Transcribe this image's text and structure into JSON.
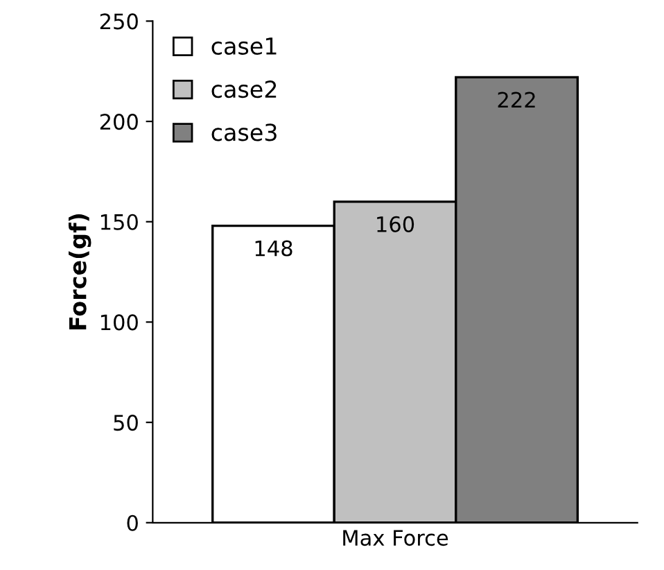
{
  "chart_data": {
    "type": "bar",
    "categories": [
      "Max Force"
    ],
    "ylabel": "Force(gf)",
    "series": [
      {
        "name": "case1",
        "color": "#ffffff",
        "values": [
          148
        ]
      },
      {
        "name": "case2",
        "color": "#c0c0c0",
        "values": [
          160
        ]
      },
      {
        "name": "case3",
        "color": "#808080",
        "values": [
          222
        ]
      }
    ],
    "ylim": [
      0,
      250
    ],
    "yticks": [
      0,
      50,
      100,
      150,
      200,
      250
    ],
    "data_labels": true,
    "legend": "top left",
    "grid": false
  }
}
